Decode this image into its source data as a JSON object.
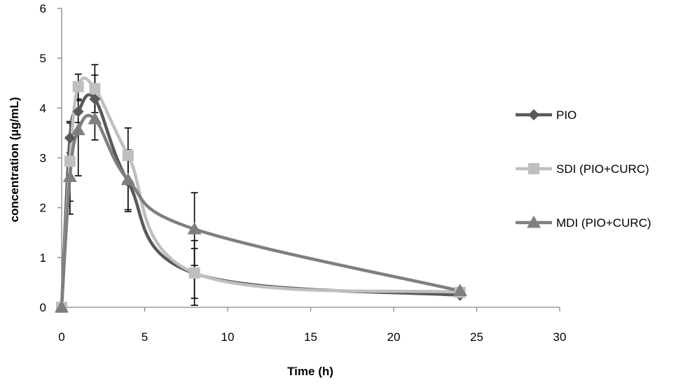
{
  "chart_data": {
    "type": "line",
    "title": "",
    "xlabel": "Time (h)",
    "ylabel": "concentration  (µg/mL)",
    "xlim": [
      0,
      30
    ],
    "ylim": [
      0,
      6
    ],
    "x_ticks": [
      "0",
      "5",
      "10",
      "15",
      "20",
      "25",
      "30"
    ],
    "y_ticks": [
      "0",
      "1",
      "2",
      "3",
      "4",
      "5",
      "6"
    ],
    "grid": false,
    "legend_position": "right",
    "x": [
      0,
      0.5,
      1,
      2,
      4,
      8,
      24
    ],
    "series": [
      {
        "name": "PIO",
        "marker": "diamond",
        "color": "#595959",
        "values": [
          0,
          3.4,
          3.93,
          4.18,
          2.52,
          0.68,
          0.24
        ],
        "errors": [
          0,
          0.3,
          0.22,
          0.48,
          0.6,
          0.5,
          0
        ]
      },
      {
        "name": "SDI (PIO+CURC)",
        "marker": "square",
        "color": "#bfbfbf",
        "values": [
          0,
          2.93,
          4.43,
          4.39,
          3.05,
          0.69,
          0.3
        ],
        "errors": [
          0,
          0.8,
          0.25,
          0.48,
          0.55,
          0.65,
          0
        ]
      },
      {
        "name": "MDI (PIO+CURC)",
        "marker": "triangle",
        "color": "#7f7f7f",
        "values": [
          0,
          2.62,
          3.56,
          3.78,
          2.56,
          1.57,
          0.33
        ],
        "errors": [
          0,
          0.75,
          0.92,
          0.42,
          0.6,
          0.73,
          0
        ]
      }
    ]
  }
}
